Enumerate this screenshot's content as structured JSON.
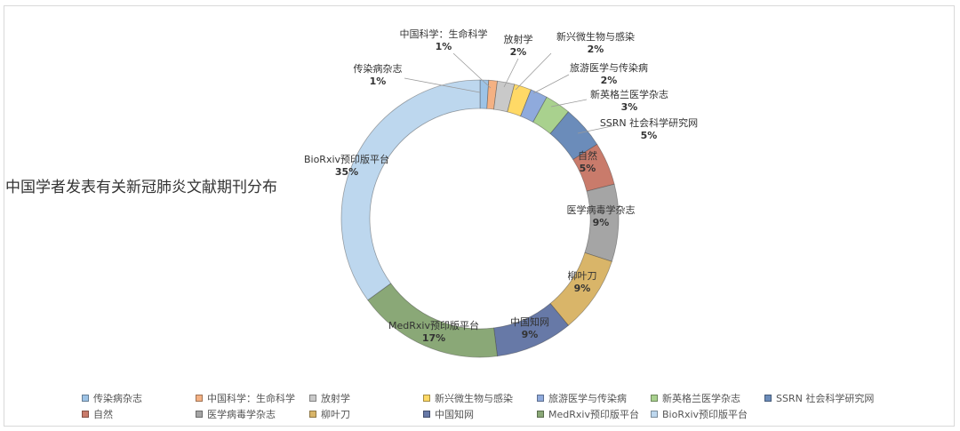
{
  "chart_data": {
    "type": "pie",
    "style": "donut",
    "title": "中国学者发表有关新冠肺炎文献期刊分布",
    "legend_position": "bottom",
    "categories": [
      "传染病杂志",
      "中国科学：生命科学",
      "放射学",
      "新兴微生物与感染",
      "旅游医学与传染病",
      "新英格兰医学杂志",
      "SSRN 社会科学研究网",
      "自然",
      "医学病毒学杂志",
      "柳叶刀",
      "中国知网",
      "MedRxiv预印版平台",
      "BioRxiv预印版平台"
    ],
    "values": [
      1,
      1,
      2,
      2,
      2,
      3,
      5,
      5,
      9,
      9,
      9,
      17,
      35
    ],
    "value_labels": [
      "1%",
      "1%",
      "2%",
      "2%",
      "2%",
      "3%",
      "5%",
      "5%",
      "9%",
      "9%",
      "9%",
      "17%",
      "35%"
    ],
    "colors": [
      "#9dc3e6",
      "#f4b183",
      "#c9c9c9",
      "#ffd966",
      "#8faadc",
      "#a9d18e",
      "#6b8cba",
      "#c97b6b",
      "#a5a5a5",
      "#d9b569",
      "#6779a7",
      "#8aa877",
      "#bdd7ee"
    ]
  }
}
